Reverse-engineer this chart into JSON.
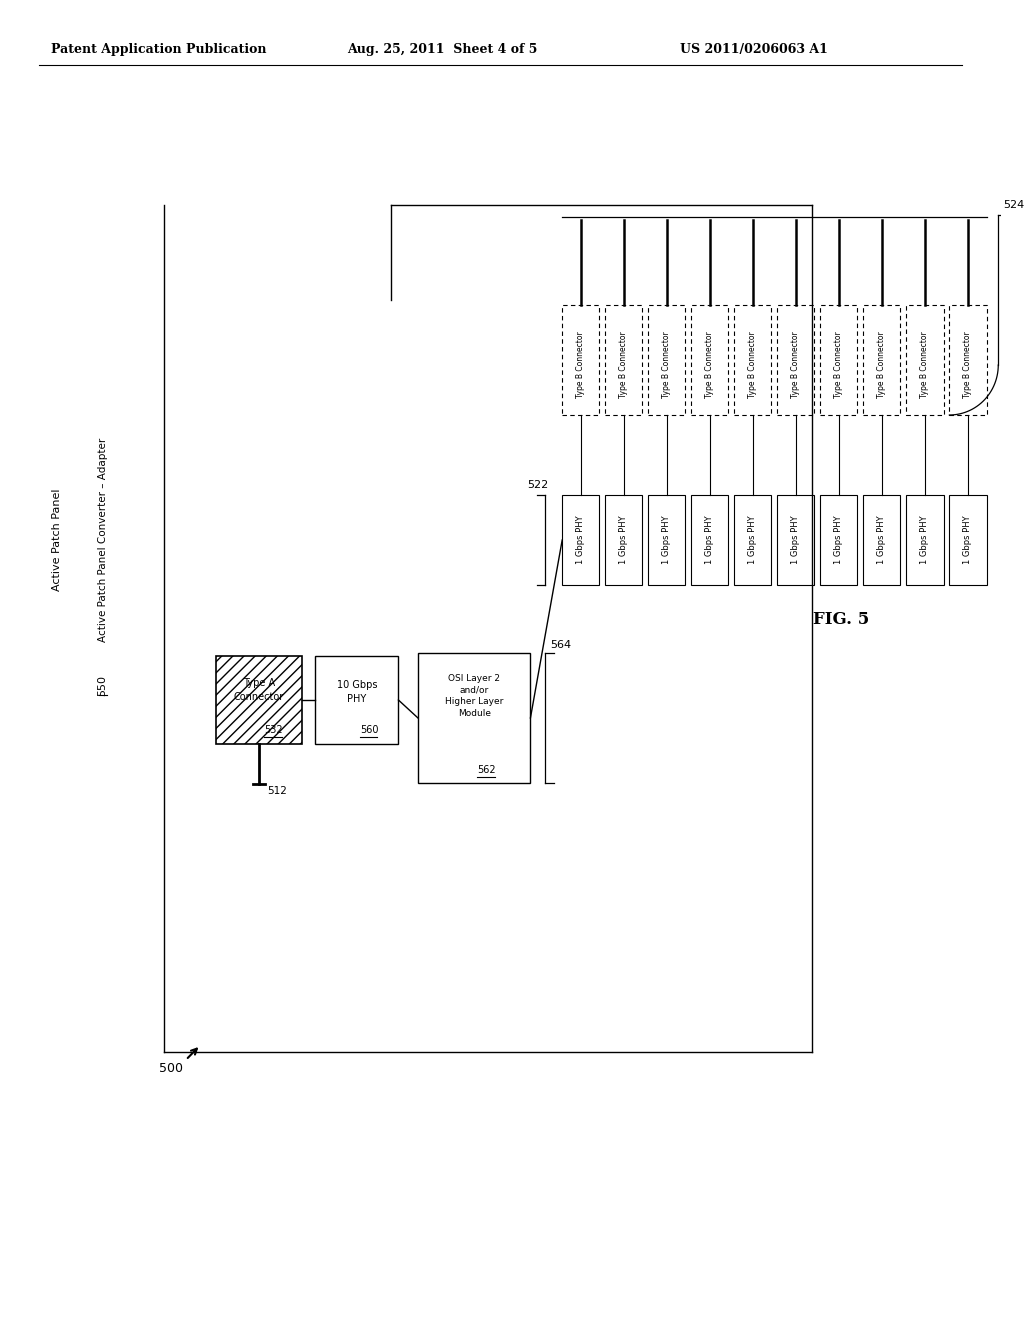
{
  "header_left": "Patent Application Publication",
  "header_mid": "Aug. 25, 2011  Sheet 4 of 5",
  "header_right": "US 2011/0206063 A1",
  "fig_label": "FIG. 5",
  "figure_number": "500",
  "diagram_title_top": "Active Patch Panel",
  "diagram_title_sub": "Active Patch Panel Converter – Adapter",
  "label_512": "512",
  "label_522": "522",
  "label_524": "524",
  "label_532": "532",
  "label_550": "550",
  "label_560": "560",
  "label_562": "562",
  "label_564": "564",
  "type_a_line1": "Type A",
  "type_a_line2": "Connector",
  "phy10_line1": "10 Gbps",
  "phy10_line2": "PHY",
  "osi_line1": "OSI Layer 2",
  "osi_line2": "and/or",
  "osi_line3": "Higher Layer",
  "osi_line4": "Module",
  "phy1_text": "1 Gbps PHY",
  "type_b_text": "Type B Connector",
  "num_channels": 10,
  "bg_color": "#ffffff",
  "fg_color": "#000000"
}
